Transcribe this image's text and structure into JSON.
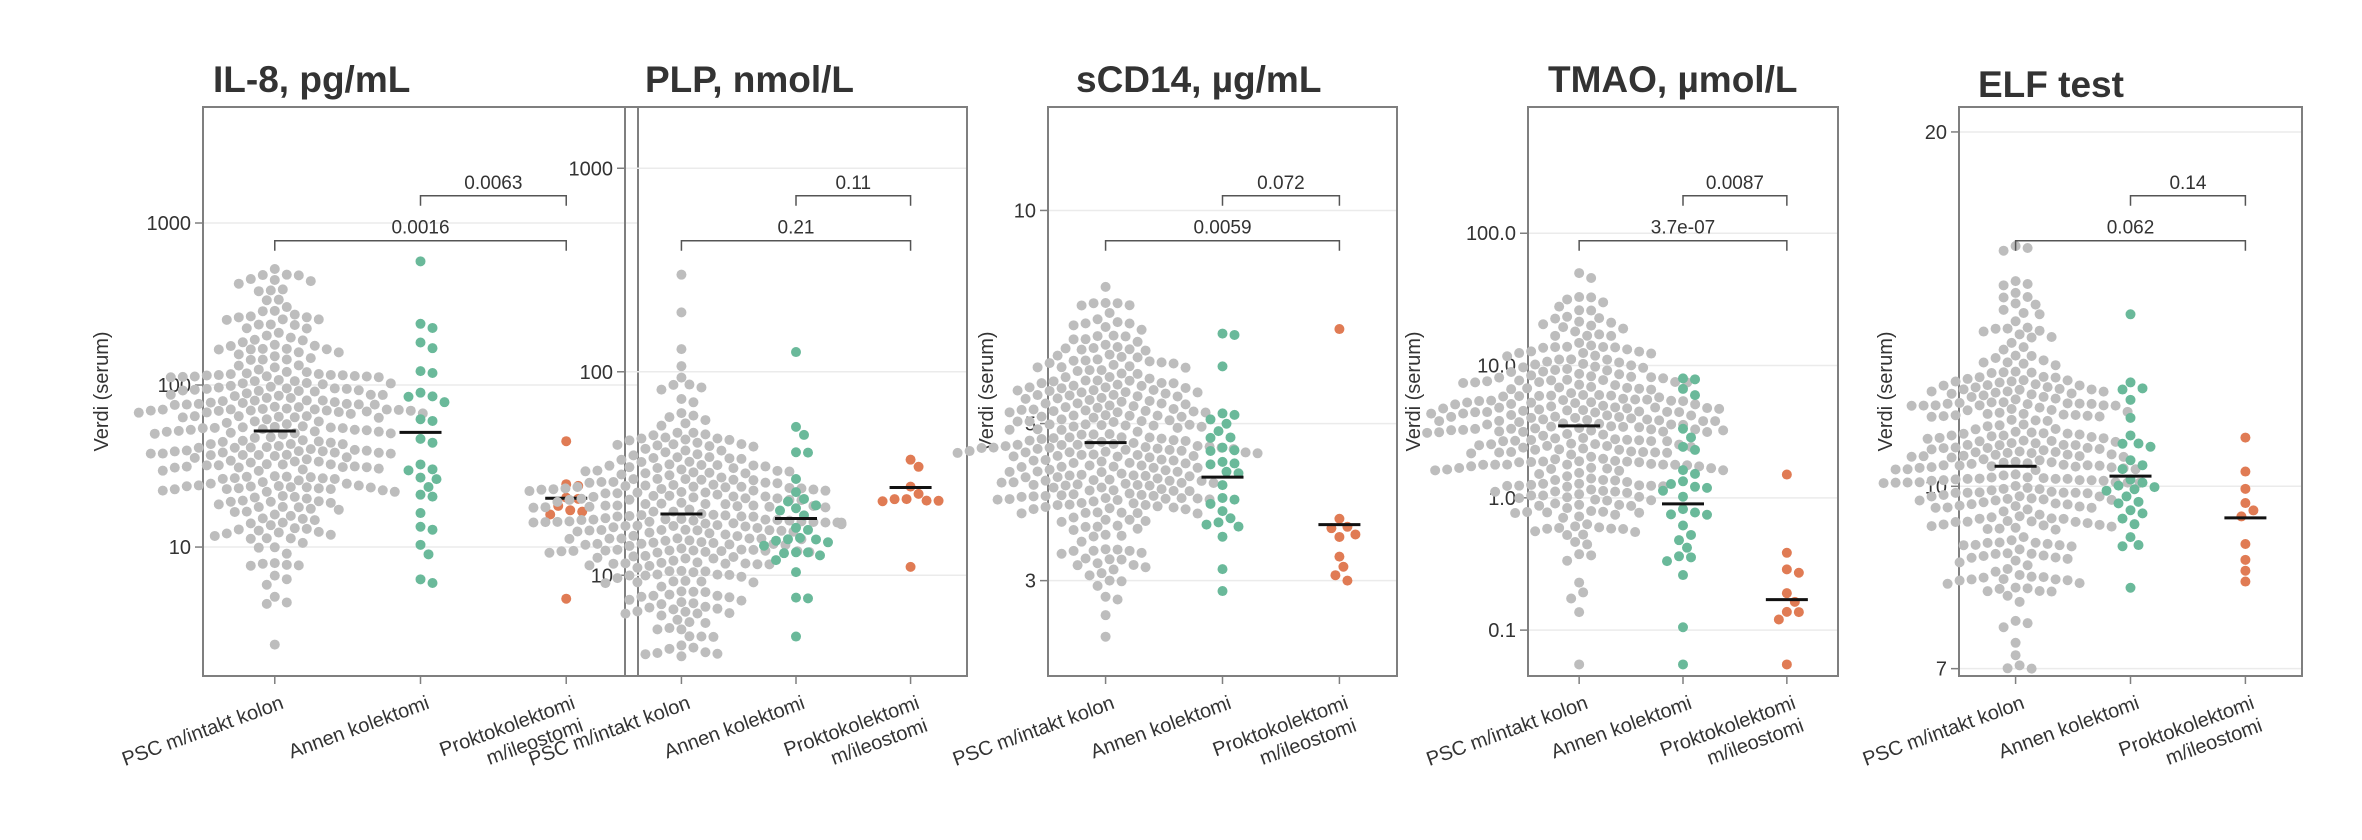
{
  "colors": {
    "group1": "#bdbdbd",
    "group2": "#6ab99a",
    "group3": "#e07b54",
    "frame": "#7f7f7f",
    "grid": "#ebebeb",
    "text": "#333333",
    "median": "#111111"
  },
  "chart_data": [
    {
      "type": "scatter",
      "title": "IL-8, pg/mL",
      "ylabel": "Verdi (serum)",
      "yscale": "log",
      "ylim": [
        1.6,
        5200
      ],
      "yticks": [
        10,
        100,
        1000
      ],
      "ytick_labels": [
        "10",
        "100",
        "1000"
      ],
      "categories": [
        "PSC m/intakt kolon",
        "Annen kolektomi",
        "Proktokolektomi m/ileostomi"
      ],
      "series": [
        {
          "name": "PSC m/intakt kolon",
          "n": 300,
          "median": 52,
          "min": 2.5,
          "max": 520
        },
        {
          "name": "Annen kolektomi",
          "n": 30,
          "median": 51,
          "min": 6,
          "max": 580
        },
        {
          "name": "Proktokolektomi m/ileostomi",
          "n": 10,
          "median": 20,
          "min": 4.8,
          "max": 45
        }
      ],
      "comparisons": [
        {
          "groups": [
            2,
            3
          ],
          "p_label": "0.0063"
        },
        {
          "groups": [
            1,
            3
          ],
          "p_label": "0.0016"
        }
      ]
    },
    {
      "type": "scatter",
      "title": "PLP, nmol/L",
      "ylabel": "",
      "yscale": "log",
      "ylim": [
        3.2,
        2000
      ],
      "yticks": [
        10,
        100,
        1000
      ],
      "ytick_labels": [
        "10",
        "100",
        "1000"
      ],
      "categories": [
        "PSC m/intakt kolon",
        "Annen kolektomi",
        "Proktokolektomi m/ileostomi"
      ],
      "series": [
        {
          "name": "PSC m/intakt kolon",
          "n": 300,
          "median": 20,
          "min": 4,
          "max": 300
        },
        {
          "name": "Annen kolektomi",
          "n": 30,
          "median": 19,
          "min": 5,
          "max": 125
        },
        {
          "name": "Proktokolektomi m/ileostomi",
          "n": 10,
          "median": 27,
          "min": 11,
          "max": 37
        }
      ],
      "comparisons": [
        {
          "groups": [
            2,
            3
          ],
          "p_label": "0.11"
        },
        {
          "groups": [
            1,
            3
          ],
          "p_label": "0.21"
        }
      ]
    },
    {
      "type": "scatter",
      "title": "sCD14, µg/mL",
      "ylabel": "Verdi (serum)",
      "yscale": "log",
      "ylim": [
        2.2,
        14
      ],
      "yticks": [
        3,
        5,
        10
      ],
      "ytick_labels": [
        "3",
        "5",
        "10"
      ],
      "categories": [
        "PSC m/intakt kolon",
        "Annen kolektomi",
        "Proktokolektomi m/ileostomi"
      ],
      "series": [
        {
          "name": "PSC m/intakt kolon",
          "n": 300,
          "median": 4.7,
          "min": 2.5,
          "max": 7.8
        },
        {
          "name": "Annen kolektomi",
          "n": 30,
          "median": 4.2,
          "min": 2.9,
          "max": 6.7
        },
        {
          "name": "Proktokolektomi m/ileostomi",
          "n": 10,
          "median": 3.6,
          "min": 3.0,
          "max": 6.8
        }
      ],
      "comparisons": [
        {
          "groups": [
            2,
            3
          ],
          "p_label": "0.072"
        },
        {
          "groups": [
            1,
            3
          ],
          "p_label": "0.0059"
        }
      ]
    },
    {
      "type": "scatter",
      "title": "TMAO,  µmol/L",
      "ylabel": "Verdi (serum)",
      "yscale": "log",
      "ylim": [
        0.045,
        900
      ],
      "yticks": [
        0.1,
        1,
        10,
        100
      ],
      "ytick_labels": [
        "0.1",
        "1.0",
        "10.0",
        "100.0"
      ],
      "categories": [
        "PSC m/intakt kolon",
        "Annen kolektomi",
        "Proktokolektomi m/ileostomi"
      ],
      "series": [
        {
          "name": "PSC m/intakt kolon",
          "n": 300,
          "median": 3.5,
          "min": 0.055,
          "max": 50
        },
        {
          "name": "Annen kolektomi",
          "n": 30,
          "median": 0.9,
          "min": 0.055,
          "max": 8
        },
        {
          "name": "Proktokolektomi m/ileostomi",
          "n": 10,
          "median": 0.17,
          "min": 0.055,
          "max": 1.5
        }
      ],
      "comparisons": [
        {
          "groups": [
            2,
            3
          ],
          "p_label": "0.0087"
        },
        {
          "groups": [
            1,
            3
          ],
          "p_label": "3.7e-07"
        }
      ]
    },
    {
      "type": "scatter",
      "title": "ELF test",
      "ylabel": "Verdi (serum)",
      "yscale": "log",
      "ylim": [
        6.9,
        21
      ],
      "yticks": [
        7,
        10,
        20
      ],
      "ytick_labels": [
        "7",
        "10",
        "20"
      ],
      "categories": [
        "PSC m/intakt kolon",
        "Annen kolektomi",
        "Proktokolektomi m/ileostomi"
      ],
      "series": [
        {
          "name": "PSC m/intakt kolon",
          "n": 300,
          "median": 10.4,
          "min": 7,
          "max": 16
        },
        {
          "name": "Annen kolektomi",
          "n": 30,
          "median": 10.2,
          "min": 8.2,
          "max": 14
        },
        {
          "name": "Proktokolektomi m/ileostomi",
          "n": 10,
          "median": 9.4,
          "min": 8.3,
          "max": 11
        }
      ],
      "comparisons": [
        {
          "groups": [
            2,
            3
          ],
          "p_label": "0.14"
        },
        {
          "groups": [
            1,
            3
          ],
          "p_label": "0.062"
        }
      ]
    }
  ]
}
